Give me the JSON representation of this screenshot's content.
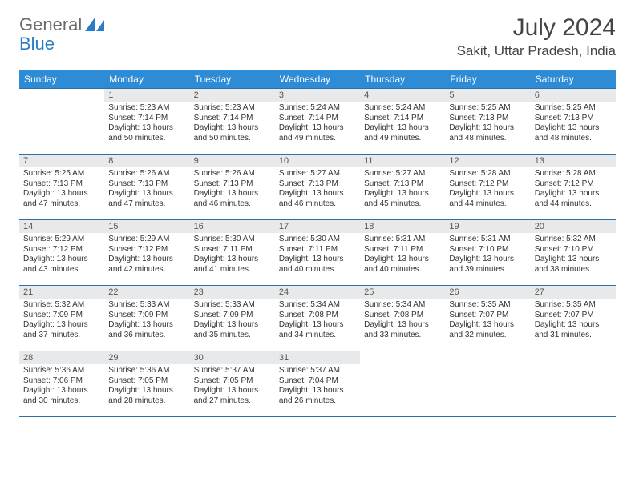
{
  "brand": {
    "part1": "General",
    "part2": "Blue",
    "logo_color": "#2a7cc7"
  },
  "title": "July 2024",
  "location": "Sakit, Uttar Pradesh, India",
  "header_bg": "#2e8bd6",
  "border_color": "#2e6fa8",
  "daynum_bg": "#e7e9eb",
  "day_headers": [
    "Sunday",
    "Monday",
    "Tuesday",
    "Wednesday",
    "Thursday",
    "Friday",
    "Saturday"
  ],
  "weeks": [
    [
      {
        "n": "",
        "sr": "",
        "ss": "",
        "dl": ""
      },
      {
        "n": "1",
        "sr": "5:23 AM",
        "ss": "7:14 PM",
        "dl": "13 hours and 50 minutes."
      },
      {
        "n": "2",
        "sr": "5:23 AM",
        "ss": "7:14 PM",
        "dl": "13 hours and 50 minutes."
      },
      {
        "n": "3",
        "sr": "5:24 AM",
        "ss": "7:14 PM",
        "dl": "13 hours and 49 minutes."
      },
      {
        "n": "4",
        "sr": "5:24 AM",
        "ss": "7:14 PM",
        "dl": "13 hours and 49 minutes."
      },
      {
        "n": "5",
        "sr": "5:25 AM",
        "ss": "7:13 PM",
        "dl": "13 hours and 48 minutes."
      },
      {
        "n": "6",
        "sr": "5:25 AM",
        "ss": "7:13 PM",
        "dl": "13 hours and 48 minutes."
      }
    ],
    [
      {
        "n": "7",
        "sr": "5:25 AM",
        "ss": "7:13 PM",
        "dl": "13 hours and 47 minutes."
      },
      {
        "n": "8",
        "sr": "5:26 AM",
        "ss": "7:13 PM",
        "dl": "13 hours and 47 minutes."
      },
      {
        "n": "9",
        "sr": "5:26 AM",
        "ss": "7:13 PM",
        "dl": "13 hours and 46 minutes."
      },
      {
        "n": "10",
        "sr": "5:27 AM",
        "ss": "7:13 PM",
        "dl": "13 hours and 46 minutes."
      },
      {
        "n": "11",
        "sr": "5:27 AM",
        "ss": "7:13 PM",
        "dl": "13 hours and 45 minutes."
      },
      {
        "n": "12",
        "sr": "5:28 AM",
        "ss": "7:12 PM",
        "dl": "13 hours and 44 minutes."
      },
      {
        "n": "13",
        "sr": "5:28 AM",
        "ss": "7:12 PM",
        "dl": "13 hours and 44 minutes."
      }
    ],
    [
      {
        "n": "14",
        "sr": "5:29 AM",
        "ss": "7:12 PM",
        "dl": "13 hours and 43 minutes."
      },
      {
        "n": "15",
        "sr": "5:29 AM",
        "ss": "7:12 PM",
        "dl": "13 hours and 42 minutes."
      },
      {
        "n": "16",
        "sr": "5:30 AM",
        "ss": "7:11 PM",
        "dl": "13 hours and 41 minutes."
      },
      {
        "n": "17",
        "sr": "5:30 AM",
        "ss": "7:11 PM",
        "dl": "13 hours and 40 minutes."
      },
      {
        "n": "18",
        "sr": "5:31 AM",
        "ss": "7:11 PM",
        "dl": "13 hours and 40 minutes."
      },
      {
        "n": "19",
        "sr": "5:31 AM",
        "ss": "7:10 PM",
        "dl": "13 hours and 39 minutes."
      },
      {
        "n": "20",
        "sr": "5:32 AM",
        "ss": "7:10 PM",
        "dl": "13 hours and 38 minutes."
      }
    ],
    [
      {
        "n": "21",
        "sr": "5:32 AM",
        "ss": "7:09 PM",
        "dl": "13 hours and 37 minutes."
      },
      {
        "n": "22",
        "sr": "5:33 AM",
        "ss": "7:09 PM",
        "dl": "13 hours and 36 minutes."
      },
      {
        "n": "23",
        "sr": "5:33 AM",
        "ss": "7:09 PM",
        "dl": "13 hours and 35 minutes."
      },
      {
        "n": "24",
        "sr": "5:34 AM",
        "ss": "7:08 PM",
        "dl": "13 hours and 34 minutes."
      },
      {
        "n": "25",
        "sr": "5:34 AM",
        "ss": "7:08 PM",
        "dl": "13 hours and 33 minutes."
      },
      {
        "n": "26",
        "sr": "5:35 AM",
        "ss": "7:07 PM",
        "dl": "13 hours and 32 minutes."
      },
      {
        "n": "27",
        "sr": "5:35 AM",
        "ss": "7:07 PM",
        "dl": "13 hours and 31 minutes."
      }
    ],
    [
      {
        "n": "28",
        "sr": "5:36 AM",
        "ss": "7:06 PM",
        "dl": "13 hours and 30 minutes."
      },
      {
        "n": "29",
        "sr": "5:36 AM",
        "ss": "7:05 PM",
        "dl": "13 hours and 28 minutes."
      },
      {
        "n": "30",
        "sr": "5:37 AM",
        "ss": "7:05 PM",
        "dl": "13 hours and 27 minutes."
      },
      {
        "n": "31",
        "sr": "5:37 AM",
        "ss": "7:04 PM",
        "dl": "13 hours and 26 minutes."
      },
      {
        "n": "",
        "sr": "",
        "ss": "",
        "dl": ""
      },
      {
        "n": "",
        "sr": "",
        "ss": "",
        "dl": ""
      },
      {
        "n": "",
        "sr": "",
        "ss": "",
        "dl": ""
      }
    ]
  ],
  "labels": {
    "sunrise": "Sunrise: ",
    "sunset": "Sunset: ",
    "daylight": "Daylight: "
  }
}
